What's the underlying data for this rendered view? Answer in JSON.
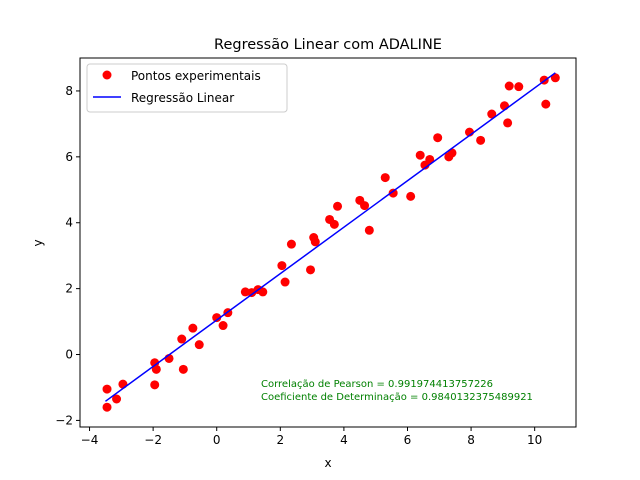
{
  "chart_data": {
    "type": "scatter",
    "title": "Regressão Linear com ADALINE",
    "xlabel": "x",
    "ylabel": "y",
    "xlim": [
      -4.3,
      11.3
    ],
    "ylim": [
      -2.2,
      9.0
    ],
    "xticks": [
      -4,
      -2,
      0,
      2,
      4,
      6,
      8,
      10
    ],
    "yticks": [
      -2,
      0,
      2,
      4,
      6,
      8
    ],
    "grid": false,
    "legend_position": "top-left",
    "series": [
      {
        "name": "Pontos experimentais",
        "kind": "scatter",
        "color": "#ff0000",
        "points": [
          [
            -3.45,
            -1.05
          ],
          [
            -3.45,
            -1.6
          ],
          [
            -3.15,
            -1.35
          ],
          [
            -2.95,
            -0.9
          ],
          [
            -1.95,
            -0.25
          ],
          [
            -1.9,
            -0.45
          ],
          [
            -1.95,
            -0.92
          ],
          [
            -1.5,
            -0.12
          ],
          [
            -1.1,
            0.47
          ],
          [
            -1.05,
            -0.45
          ],
          [
            -0.75,
            0.8
          ],
          [
            -0.55,
            0.3
          ],
          [
            0.0,
            1.12
          ],
          [
            0.2,
            0.88
          ],
          [
            0.35,
            1.27
          ],
          [
            0.9,
            1.9
          ],
          [
            1.1,
            1.88
          ],
          [
            1.3,
            1.97
          ],
          [
            1.45,
            1.9
          ],
          [
            2.05,
            2.7
          ],
          [
            2.15,
            2.2
          ],
          [
            2.35,
            3.35
          ],
          [
            2.95,
            2.57
          ],
          [
            3.05,
            3.55
          ],
          [
            3.1,
            3.42
          ],
          [
            3.55,
            4.1
          ],
          [
            3.7,
            3.95
          ],
          [
            3.8,
            4.5
          ],
          [
            4.5,
            4.68
          ],
          [
            4.65,
            4.52
          ],
          [
            4.8,
            3.77
          ],
          [
            5.3,
            5.37
          ],
          [
            5.55,
            4.9
          ],
          [
            6.1,
            4.8
          ],
          [
            6.4,
            6.05
          ],
          [
            6.55,
            5.75
          ],
          [
            6.7,
            5.92
          ],
          [
            6.95,
            6.58
          ],
          [
            7.3,
            6.0
          ],
          [
            7.4,
            6.12
          ],
          [
            7.95,
            6.75
          ],
          [
            8.3,
            6.5
          ],
          [
            8.65,
            7.3
          ],
          [
            9.05,
            7.55
          ],
          [
            9.15,
            7.03
          ],
          [
            9.2,
            8.15
          ],
          [
            9.5,
            8.13
          ],
          [
            10.3,
            8.33
          ],
          [
            10.35,
            7.6
          ],
          [
            10.65,
            8.4
          ]
        ]
      },
      {
        "name": "Regressão Linear",
        "kind": "line",
        "color": "#0000ff",
        "points": [
          [
            -3.5,
            -1.42
          ],
          [
            10.65,
            8.55
          ]
        ]
      }
    ],
    "annotations": [
      "Correlação de Pearson = 0.991974413757226",
      "Coeficiente de Determinação = 0.9840132375489921"
    ],
    "annotation_color": "#008000"
  }
}
